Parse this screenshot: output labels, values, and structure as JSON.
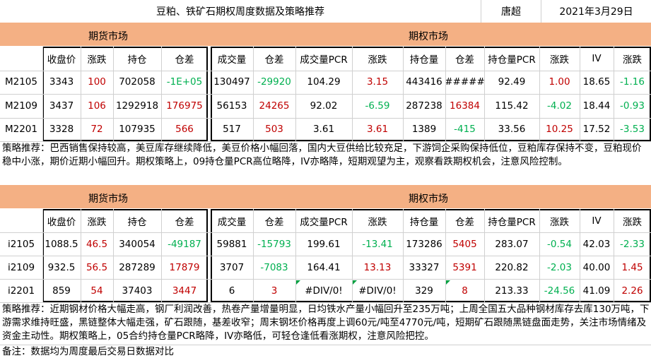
{
  "header": {
    "title": "豆粕、铁矿石期权周度数据及策略推荐",
    "author": "唐超",
    "date": "2021年3月29日"
  },
  "futures_label": "期货市场",
  "options_label": "期权市场",
  "futures_columns": [
    "收盘价",
    "涨跌",
    "持仓",
    "仓差"
  ],
  "options_columns": [
    "成交量",
    "仓差",
    "成交量PCR",
    "涨跌",
    "持仓量",
    "仓差",
    "持仓量PCR",
    "涨跌",
    "IV",
    "涨跌"
  ],
  "soymeal": {
    "rows": [
      {
        "contract": "M2105",
        "close": "3343",
        "chg": "100",
        "oi": "702058",
        "oi_chg": "-1E+05",
        "opt": [
          "130497",
          "-29920",
          "104.29",
          "3.15",
          "443416",
          "#####",
          "92.49",
          "1.00",
          "18.65",
          "-1.16"
        ]
      },
      {
        "contract": "M2109",
        "close": "3437",
        "chg": "106",
        "oi": "1292918",
        "oi_chg": "176975",
        "opt": [
          "56153",
          "24265",
          "92.02",
          "-6.59",
          "287238",
          "16384",
          "115.42",
          "-4.02",
          "18.44",
          "-0.93"
        ]
      },
      {
        "contract": "M2201",
        "close": "3328",
        "chg": "72",
        "oi": "107935",
        "oi_chg": "566",
        "opt": [
          "517",
          "503",
          "3.61",
          "3.61",
          "1389",
          "-415",
          "33.56",
          "10.25",
          "17.52",
          "-3.53"
        ]
      }
    ],
    "strategy": "策略推荐：巴西销售保持较高，美豆库存继续降低，美豆价格小幅回落，国内大豆供给比较充足，下游饲企采购保持低位，豆粕库存保持不变，豆粕现价稳中小涨，期价近期小幅回升。期权策略上，09持仓量PCR高位略降，IV亦略降，短期观望为主，观察看跌期权机会，注意风险控制。"
  },
  "iron_ore": {
    "rows": [
      {
        "contract": "i2105",
        "close": "1088.5",
        "chg": "46.5",
        "oi": "340054",
        "oi_chg": "-49187",
        "opt": [
          "59881",
          "-15793",
          "199.61",
          "-13.41",
          "173286",
          "5405",
          "283.07",
          "-0.54",
          "42.03",
          "-2.33"
        ]
      },
      {
        "contract": "i2109",
        "close": "932.5",
        "chg": "56.5",
        "oi": "287289",
        "oi_chg": "17879",
        "opt": [
          "3707",
          "-7083",
          "164.41",
          "13.13",
          "33327",
          "5391",
          "220.82",
          "-2.03",
          "40.00",
          "1.45"
        ]
      },
      {
        "contract": "i2201",
        "close": "859",
        "chg": "54",
        "oi": "37403",
        "oi_chg": "3447",
        "opt": [
          "6",
          "3",
          "#DIV/0!",
          "#DIV/0!",
          "329",
          "8",
          "213.33",
          "-24.56",
          "41.09",
          "2.26"
        ]
      }
    ],
    "strategy": "策略推荐：近期钢材价格大幅走高，钢厂利润改善，热卷产量增量明显，日均铁水产量小幅回升至235万吨；上周全国五大品种钢材库存去库130万吨，下游需求维持旺盛，黑链整体大幅走强，矿石跟随，基差收窄；周末钢坯价格再度上调60元/吨至4770元/吨，短期矿石跟随黑链盘面走势，关注市场情绪及资金主动性。期权策略上，05合约持仓量PCR略降，IV亦略低，可轻仓逢低看涨期权，注意风险把控。"
  },
  "footnote": "备注：数据均为周度最后交易日数据对比",
  "colors": {
    "header_bg": "#f4b084",
    "positive": "#c00000",
    "negative": "#00b050"
  }
}
